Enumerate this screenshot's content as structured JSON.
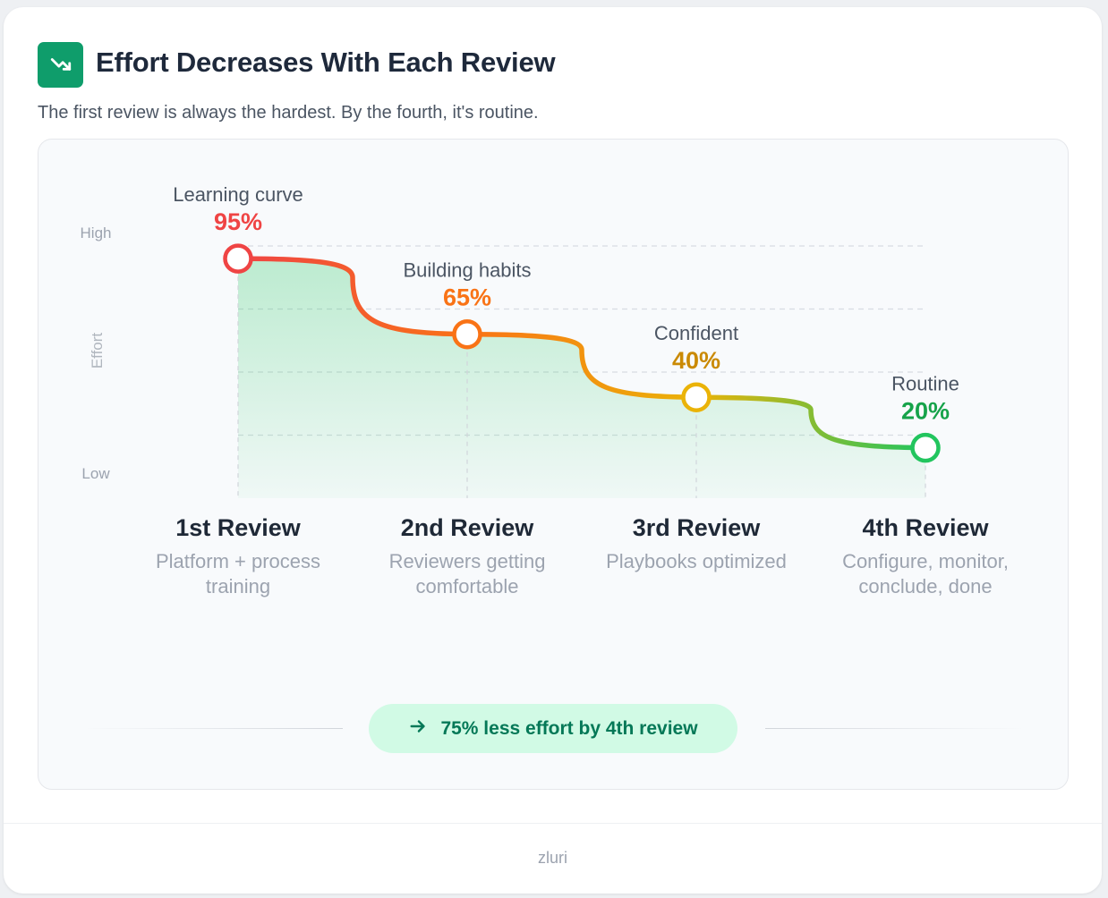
{
  "header": {
    "icon": "trending-down-icon",
    "title": "Effort Decreases With Each Review",
    "subtitle": "The first review is always the hardest. By the fourth, it's routine."
  },
  "chart_data": {
    "type": "area",
    "title": "",
    "ylabel": "Effort",
    "y_tick_labels": {
      "high": "High",
      "low": "Low"
    },
    "ylim": [
      0,
      100
    ],
    "grid": true,
    "points": [
      {
        "category": "1st Review",
        "description": "Platform + process training",
        "stage": "Learning curve",
        "value": 95,
        "value_label": "95%",
        "color": "#ef4444"
      },
      {
        "category": "2nd Review",
        "description": "Reviewers getting comfortable",
        "stage": "Building habits",
        "value": 65,
        "value_label": "65%",
        "color": "#f97316"
      },
      {
        "category": "3rd Review",
        "description": "Playbooks optimized",
        "stage": "Confident",
        "value": 40,
        "value_label": "40%",
        "color": "#eab308"
      },
      {
        "category": "4th Review",
        "description": "Configure, monitor, conclude, done",
        "stage": "Routine",
        "value": 20,
        "value_label": "20%",
        "color": "#22c55e"
      }
    ],
    "area_color": "#22c55e"
  },
  "summary": {
    "icon": "arrow-right-icon",
    "text": "75% less effort by 4th review"
  },
  "footer": {
    "brand": "zluri"
  }
}
